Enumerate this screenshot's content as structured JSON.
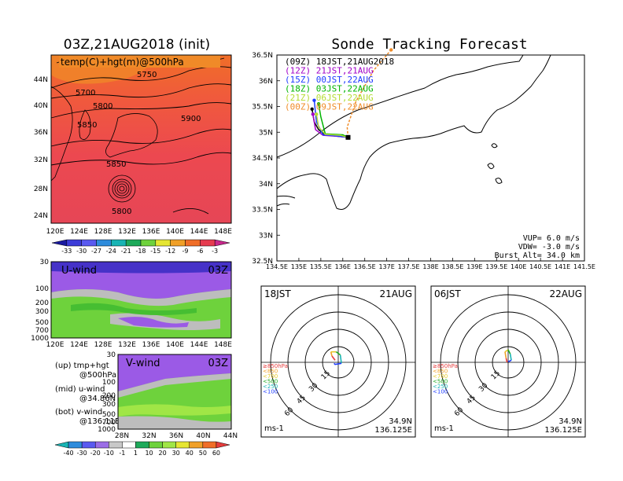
{
  "map_panel": {
    "title": "03Z,21AUG2018 (init)",
    "overlay_label": "temp(C)+hgt(m)@500hPa",
    "lat_labels": [
      "44N",
      "40N",
      "36N",
      "32N",
      "28N",
      "24N"
    ],
    "lon_labels": [
      "120E",
      "124E",
      "128E",
      "132E",
      "136E",
      "140E",
      "144E",
      "148E"
    ],
    "contour_labels": [
      "5750",
      "5700",
      "5800",
      "5900",
      "5850",
      "5850",
      "5800"
    ],
    "temp_colorbar": {
      "labels": [
        "-33",
        "-30",
        "-27",
        "-24",
        "-21",
        "-18",
        "-15",
        "-12",
        "-9",
        "-6",
        "-3"
      ],
      "colors": [
        "#1a1aa0",
        "#3c3cd8",
        "#5a5af0",
        "#2e8cdc",
        "#18b4b4",
        "#1eaa5a",
        "#6ed23c",
        "#e6e632",
        "#f0a028",
        "#f06e28",
        "#e63c50",
        "#c8288c"
      ]
    }
  },
  "u_wind_panel": {
    "label": "U-wind",
    "time_label": "03Z",
    "p_labels": [
      "30",
      "100",
      "200",
      "300",
      "500",
      "700",
      "1000"
    ],
    "lon_labels": [
      "120E",
      "124E",
      "128E",
      "132E",
      "136E",
      "140E",
      "144E",
      "148E"
    ]
  },
  "v_wind_panel": {
    "label": "V-wind",
    "time_label": "03Z",
    "p_labels": [
      "30",
      "100",
      "200",
      "300",
      "500",
      "700",
      "1000"
    ],
    "lat_labels": [
      "28N",
      "32N",
      "36N",
      "40N",
      "44N"
    ]
  },
  "legend_notes": [
    {
      "line1": "(up) tmp+hgt",
      "line2": "@500hPa"
    },
    {
      "line1": "(mid) u-wind",
      "line2": "@34.86N"
    },
    {
      "line1": "(bot) v-wind",
      "line2": "@136.11E"
    }
  ],
  "wind_colorbar": {
    "labels": [
      "-40",
      "-30",
      "-20",
      "-10",
      "-1",
      "1",
      "10",
      "20",
      "30",
      "40",
      "50",
      "60"
    ],
    "colors": [
      "#18b4b4",
      "#2e8cdc",
      "#5a5af0",
      "#9b6ee6",
      "#c8c8c8",
      "#ffffff",
      "#1eaa5a",
      "#6ed23c",
      "#a0e646",
      "#e6e632",
      "#f0a028",
      "#f06e28",
      "#e63c3c"
    ]
  },
  "tracking_panel": {
    "title": "Sonde Tracking Forecast",
    "lat_labels": [
      "36.5N",
      "36N",
      "35.5N",
      "35N",
      "34.5N",
      "34N",
      "33.5N",
      "33N",
      "32.5N"
    ],
    "lon_labels": [
      "134.5E",
      "135E",
      "135.5E",
      "136E",
      "136.5E",
      "137E",
      "137.5E",
      "138E",
      "138.5E",
      "139E",
      "139.5E",
      "140E",
      "140.5E",
      "141E",
      "141.5E"
    ],
    "legend": [
      {
        "label": "(09Z)  18JST,21AUG2018",
        "color": "#000000"
      },
      {
        "label": "(12Z)  21JST,21AUG",
        "color": "#a000c8"
      },
      {
        "label": "(15Z)  00JST,22AUG",
        "color": "#1e3cff"
      },
      {
        "label": "(18Z)  03JST,22AUG",
        "color": "#00b400"
      },
      {
        "label": "(21Z)  06JST,22AUG",
        "color": "#b4dc32"
      },
      {
        "label": "(00Z)  09JST,22AUG",
        "color": "#f08c28"
      }
    ],
    "params": [
      "VUP=  6.0 m/s",
      "VDW= -3.0 m/s",
      "Burst Alt= 34.0 km"
    ]
  },
  "hodographs": [
    {
      "time": "18JST",
      "date": "21AUG",
      "lat": "34.9N",
      "lon": "136.125E",
      "unit": "ms-1"
    },
    {
      "time": "06JST",
      "date": "22AUG",
      "lat": "34.9N",
      "lon": "136.125E",
      "unit": "ms-1"
    }
  ],
  "hodo_ring_labels": [
    "15",
    "30",
    "45",
    "60"
  ],
  "hodo_levels": [
    {
      "label": "≥850hPa",
      "color": "#e63c3c"
    },
    {
      "label": "<850",
      "color": "#f0a028"
    },
    {
      "label": "<700",
      "color": "#e6c828"
    },
    {
      "label": "<500",
      "color": "#1eaa1e"
    },
    {
      "label": "<250",
      "color": "#18b4b4"
    },
    {
      "label": "<100",
      "color": "#1e3cff"
    }
  ],
  "chart_data": [
    {
      "type": "heatmap",
      "title": "03Z,21AUG2018 (init)",
      "subtitle": "temp(C)+hgt(m)@500hPa",
      "xlim": [
        120,
        150
      ],
      "ylim": [
        22,
        47
      ],
      "colorbar_levels": [
        -33,
        -30,
        -27,
        -24,
        -21,
        -18,
        -15,
        -12,
        -9,
        -6,
        -3
      ],
      "contour_labels": [
        5750,
        5700,
        5800,
        5900,
        5850,
        5850,
        5800
      ]
    },
    {
      "type": "heatmap",
      "title": "U-wind",
      "xlim": [
        120,
        150
      ],
      "ylim": [
        1000,
        30
      ],
      "colorbar_levels": [
        -40,
        -30,
        -20,
        -10,
        -1,
        1,
        10,
        20,
        30,
        40,
        50,
        60
      ]
    },
    {
      "type": "heatmap",
      "title": "V-wind",
      "xlim": [
        28,
        44
      ],
      "ylim": [
        1000,
        30
      ],
      "colorbar_levels": [
        -40,
        -30,
        -20,
        -10,
        -1,
        1,
        10,
        20,
        30,
        40,
        50,
        60
      ]
    },
    {
      "type": "line",
      "title": "Sonde Tracking Forecast",
      "xlim": [
        134.5,
        141.5
      ],
      "ylim": [
        32.5,
        36.5
      ],
      "series": [
        {
          "name": "(09Z)  18JST,21AUG2018",
          "x": [
            136.12,
            135.9,
            135.6,
            135.45,
            135.35,
            135.3
          ],
          "y": [
            34.9,
            34.92,
            34.95,
            35.05,
            35.2,
            35.45
          ]
        },
        {
          "name": "(12Z)  21JST,21AUG",
          "x": [
            136.12,
            135.9,
            135.55,
            135.38,
            135.32
          ],
          "y": [
            34.9,
            34.92,
            34.94,
            35.05,
            35.35
          ]
        },
        {
          "name": "(15Z)  00JST,22AUG",
          "x": [
            136.12,
            135.85,
            135.55,
            135.4,
            135.35
          ],
          "y": [
            34.9,
            34.93,
            34.95,
            35.2,
            35.62
          ]
        },
        {
          "name": "(18Z)  03JST,22AUG",
          "x": [
            136.12,
            136.0,
            135.6,
            135.5,
            135.45
          ],
          "y": [
            34.9,
            34.95,
            34.97,
            35.3,
            35.55
          ]
        },
        {
          "name": "(21Z)  06JST,22AUG",
          "x": [
            136.12,
            135.95,
            135.6,
            135.45,
            135.4
          ],
          "y": [
            34.9,
            34.94,
            34.96,
            35.1,
            35.35
          ]
        },
        {
          "name": "(00Z)  09JST,22AUG",
          "x": [
            136.12,
            136.1,
            136.3,
            136.7,
            137.1
          ],
          "y": [
            34.9,
            35.1,
            35.6,
            36.2,
            36.6
          ]
        }
      ]
    },
    {
      "type": "line",
      "title": "18JST 21AUG hodograph",
      "ring_labels": [
        15,
        30,
        45,
        60
      ],
      "series": [
        {
          "name": "≥850hPa",
          "u": [
            -3,
            -6
          ],
          "v": [
            2,
            6
          ]
        },
        {
          "name": "<850",
          "u": [
            -6,
            -7
          ],
          "v": [
            6,
            10
          ]
        },
        {
          "name": "<700",
          "u": [
            -7,
            -2
          ],
          "v": [
            10,
            10
          ]
        },
        {
          "name": "<500",
          "u": [
            -2,
            2
          ],
          "v": [
            10,
            7
          ]
        },
        {
          "name": "<250",
          "u": [
            2,
            3
          ],
          "v": [
            7,
            -1
          ]
        },
        {
          "name": "<100",
          "u": [
            3,
            -3,
            -4
          ],
          "v": [
            -1,
            -2,
            -1
          ]
        }
      ]
    },
    {
      "type": "line",
      "title": "06JST 22AUG hodograph",
      "ring_labels": [
        15,
        30,
        45,
        60
      ],
      "series": [
        {
          "name": "≥850hPa",
          "u": [
            -1,
            -2
          ],
          "v": [
            0,
            4
          ]
        },
        {
          "name": "<850",
          "u": [
            -2,
            -3
          ],
          "v": [
            4,
            10
          ]
        },
        {
          "name": "<700",
          "u": [
            -3,
            0
          ],
          "v": [
            10,
            12
          ]
        },
        {
          "name": "<500",
          "u": [
            0,
            2
          ],
          "v": [
            12,
            8
          ]
        },
        {
          "name": "<250",
          "u": [
            2,
            3
          ],
          "v": [
            8,
            2
          ]
        },
        {
          "name": "<100",
          "u": [
            3,
            1,
            0
          ],
          "v": [
            2,
            1,
            1
          ]
        }
      ]
    }
  ]
}
